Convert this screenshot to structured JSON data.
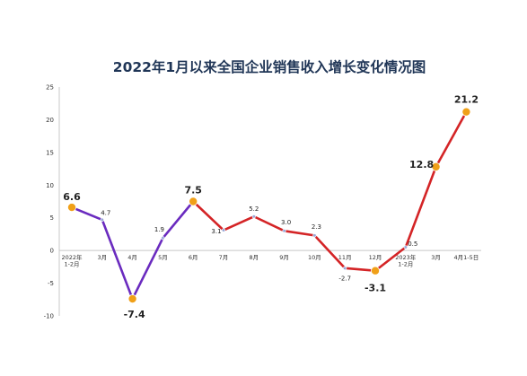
{
  "chart_data": {
    "type": "line",
    "title": "2022年1月以来全国企业销售收入增长变化情况图",
    "ylim": [
      -10,
      25
    ],
    "yticks": [
      -10,
      -5,
      0,
      5,
      10,
      15,
      20,
      25
    ],
    "categories": [
      [
        "2022年",
        "1-2月"
      ],
      [
        "3月"
      ],
      [
        "4月"
      ],
      [
        "5月"
      ],
      [
        "6月"
      ],
      [
        "7月"
      ],
      [
        "8月"
      ],
      [
        "9月"
      ],
      [
        "10月"
      ],
      [
        "11月"
      ],
      [
        "12月"
      ],
      [
        "2023年",
        "1-2月"
      ],
      [
        "3月"
      ],
      [
        "4月1-5日"
      ]
    ],
    "values": [
      6.6,
      4.7,
      -7.4,
      1.9,
      7.5,
      3.1,
      5.2,
      3.0,
      2.3,
      -2.7,
      -3.1,
      0.5,
      12.8,
      21.2
    ],
    "value_labels": [
      "6.6",
      "4.7",
      "-7.4",
      "1.9",
      "7.5",
      "3.1",
      "5.2",
      "3.0",
      "2.3",
      "-2.7",
      "-3.1",
      "0.5",
      "12.8",
      "21.2"
    ],
    "highlight_points": [
      0,
      2,
      4,
      10,
      12,
      13
    ],
    "segments": [
      {
        "from": 0,
        "to": 4,
        "color": "#6a2bbf"
      },
      {
        "from": 4,
        "to": 13,
        "color": "#d42426"
      }
    ],
    "colors": {
      "segment_purple": "#6a2bbf",
      "segment_red": "#d42426",
      "highlight_marker": "#f0a018",
      "small_marker": "#9aa8d8",
      "axis": "#c8c8c8"
    },
    "grid": false
  }
}
